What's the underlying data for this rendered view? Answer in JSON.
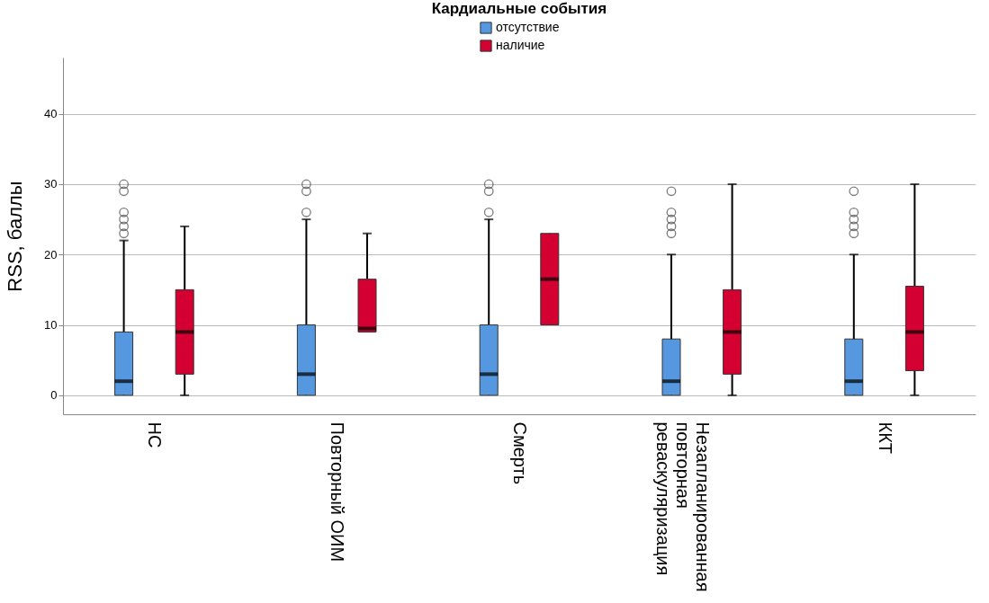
{
  "chart_data": {
    "type": "box",
    "legend_title": "Кардиальные события",
    "ylabel": "RSS, баллы",
    "categories": [
      "НС",
      "Повторный ОИМ",
      "Смерть",
      "Незапланированная повторная реваскуляризация",
      "ККТ"
    ],
    "series": [
      {
        "name": "отсутствие",
        "color": "#5698e0",
        "boxes": [
          {
            "low": 0,
            "q1": 0,
            "median": 2,
            "q3": 9,
            "high": 22,
            "outliers": [
              23,
              24,
              25,
              26,
              29,
              30
            ]
          },
          {
            "low": 0,
            "q1": 0,
            "median": 3,
            "q3": 10,
            "high": 25,
            "outliers": [
              26,
              29,
              30
            ]
          },
          {
            "low": 0,
            "q1": 0,
            "median": 3,
            "q3": 10,
            "high": 25,
            "outliers": [
              26,
              29,
              30
            ]
          },
          {
            "low": 0,
            "q1": 0,
            "median": 2,
            "q3": 8,
            "high": 20,
            "outliers": [
              23,
              24,
              25,
              26,
              29
            ]
          },
          {
            "low": 0,
            "q1": 0,
            "median": 2,
            "q3": 8,
            "high": 20,
            "outliers": [
              23,
              24,
              25,
              26,
              29
            ]
          }
        ]
      },
      {
        "name": "наличие",
        "color": "#d50032",
        "boxes": [
          {
            "low": 0,
            "q1": 3,
            "median": 9,
            "q3": 15,
            "high": 24
          },
          {
            "low": 9,
            "q1": 9,
            "median": 9.5,
            "q3": 16.5,
            "high": 23
          },
          {
            "low": 10,
            "q1": 10,
            "median": 16.5,
            "q3": 23,
            "high": 23
          },
          {
            "low": 0,
            "q1": 3,
            "median": 9,
            "q3": 15,
            "high": 30
          },
          {
            "low": 0,
            "q1": 3.5,
            "median": 9,
            "q3": 15.5,
            "high": 30
          }
        ]
      }
    ],
    "ylim": [
      -2.7,
      48
    ],
    "yticks": [
      0,
      10,
      20,
      30,
      40
    ],
    "grid": "y",
    "legend": "top"
  }
}
